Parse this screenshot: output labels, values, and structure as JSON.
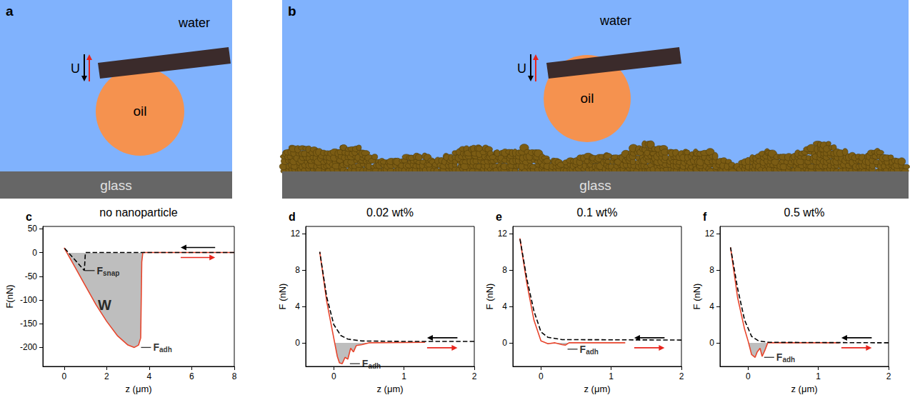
{
  "diagrams": [
    {
      "panel": "a",
      "medium": "water",
      "droplet": "oil",
      "substrate": "glass",
      "motion": "U",
      "nanoparticles": false
    },
    {
      "panel": "b",
      "medium": "water",
      "droplet": "oil",
      "substrate": "glass",
      "motion": "U",
      "nanoparticles": true
    }
  ],
  "chart_data": [
    {
      "type": "line",
      "panel": "c",
      "title": "no nanoparticle",
      "x_label": "z (μm)",
      "y_label": "F(nN)",
      "xlim": [
        -1,
        8
      ],
      "xticks": [
        0,
        2,
        4,
        6,
        8
      ],
      "ylim": [
        -240,
        55
      ],
      "yticks": [
        -200,
        -150,
        -100,
        -50,
        0,
        50
      ],
      "grid": false,
      "series": [
        {
          "type": "area",
          "color": "#e8452c",
          "line_style": "solid",
          "x": [
            0,
            0.5,
            1,
            1.5,
            2,
            2.5,
            3,
            3.3,
            3.5,
            3.6,
            3.65,
            3.7,
            8
          ],
          "values": [
            10,
            -30,
            -70,
            -110,
            -145,
            -175,
            -195,
            -200,
            -195,
            -180,
            -20,
            0,
            0
          ]
        },
        {
          "type": "line",
          "color": "#000000",
          "line_style": "dashed",
          "x": [
            8,
            1.0,
            0.95,
            0.5,
            0
          ],
          "values": [
            0,
            0,
            -38,
            -15,
            10
          ]
        }
      ],
      "annotations": [
        {
          "text": "F",
          "subscript": "snap",
          "x": 1.2,
          "y": -38
        },
        {
          "text": "W",
          "x": 1.9,
          "y": -110
        },
        {
          "text": "F",
          "subscript": "adh",
          "x": 3.85,
          "y": -200
        }
      ]
    },
    {
      "type": "line",
      "panel": "d",
      "title": "0.02 wt%",
      "x_label": "z (μm)",
      "y_label": "F (nN)",
      "xlim": [
        -0.4,
        2
      ],
      "xticks": [
        0,
        1,
        2
      ],
      "ylim": [
        -2.6,
        12.8
      ],
      "yticks": [
        0,
        4,
        8,
        12
      ],
      "grid": false,
      "series": [
        {
          "type": "area",
          "color": "#e8452c",
          "line_style": "solid",
          "x": [
            -0.2,
            -0.1,
            0,
            0.05,
            0.08,
            0.12,
            0.16,
            0.2,
            0.24,
            0.28,
            0.32,
            0.4,
            0.5,
            1.3
          ],
          "values": [
            10,
            4.5,
            0.5,
            -1.5,
            -2.2,
            -2.3,
            -1.6,
            -1.8,
            -0.6,
            -1,
            -0.3,
            -0.2,
            0,
            0.05
          ]
        },
        {
          "type": "line",
          "color": "#000000",
          "line_style": "dashed",
          "x": [
            2,
            1,
            0.4,
            0.2,
            0.1,
            0,
            -0.1,
            -0.2
          ],
          "values": [
            0.15,
            0.15,
            0.2,
            0.4,
            0.8,
            2,
            5,
            10
          ]
        }
      ],
      "annotations": [
        {
          "text": "F",
          "subscript": "adh",
          "x": 0.3,
          "y": -2.3
        }
      ]
    },
    {
      "type": "line",
      "panel": "e",
      "title": "0.1 wt%",
      "x_label": "z (μm)",
      "y_label": "F (nN)",
      "xlim": [
        -0.4,
        2
      ],
      "xticks": [
        0,
        1,
        2
      ],
      "ylim": [
        -2.6,
        12.8
      ],
      "yticks": [
        0,
        4,
        8,
        12
      ],
      "grid": false,
      "series": [
        {
          "type": "area",
          "color": "#e8452c",
          "line_style": "solid",
          "x": [
            -0.3,
            -0.2,
            -0.1,
            0,
            0.1,
            0.2,
            0.3,
            0.35,
            0.4,
            0.6,
            1.2
          ],
          "values": [
            11.5,
            6.5,
            2.5,
            0.2,
            -0.1,
            0,
            -0.2,
            -0.25,
            0,
            0,
            0
          ]
        },
        {
          "type": "line",
          "color": "#000000",
          "line_style": "dashed",
          "x": [
            2,
            0.3,
            0.1,
            0,
            -0.1,
            -0.2,
            -0.3
          ],
          "values": [
            0.3,
            0.35,
            0.6,
            1.2,
            3.5,
            7,
            11.5
          ]
        }
      ],
      "annotations": [
        {
          "text": "F",
          "subscript": "adh",
          "x": 0.45,
          "y": -0.7
        }
      ]
    },
    {
      "type": "line",
      "panel": "f",
      "title": "0.5 wt%",
      "x_label": "z (μm)",
      "y_label": "F (nN)",
      "xlim": [
        -0.4,
        2
      ],
      "xticks": [
        0,
        1,
        2
      ],
      "ylim": [
        -2.6,
        12.8
      ],
      "yticks": [
        0,
        4,
        8,
        12
      ],
      "grid": false,
      "series": [
        {
          "type": "area",
          "color": "#e8452c",
          "line_style": "solid",
          "x": [
            -0.25,
            -0.15,
            -0.05,
            0,
            0.05,
            0.1,
            0.13,
            0.17,
            0.2,
            0.24,
            0.28,
            1.3
          ],
          "values": [
            10.5,
            5,
            1.5,
            0.2,
            -1.3,
            -1.6,
            -1,
            -0.6,
            -1.5,
            -0.8,
            0,
            0
          ]
        },
        {
          "type": "line",
          "color": "#000000",
          "line_style": "dashed",
          "x": [
            2,
            0.3,
            0.15,
            0.05,
            -0.05,
            -0.15,
            -0.25
          ],
          "values": [
            0,
            0.05,
            0.2,
            0.7,
            2.5,
            6,
            10.5
          ]
        }
      ],
      "annotations": [
        {
          "text": "F",
          "subscript": "adh",
          "x": 0.3,
          "y": -1.6
        }
      ]
    }
  ]
}
